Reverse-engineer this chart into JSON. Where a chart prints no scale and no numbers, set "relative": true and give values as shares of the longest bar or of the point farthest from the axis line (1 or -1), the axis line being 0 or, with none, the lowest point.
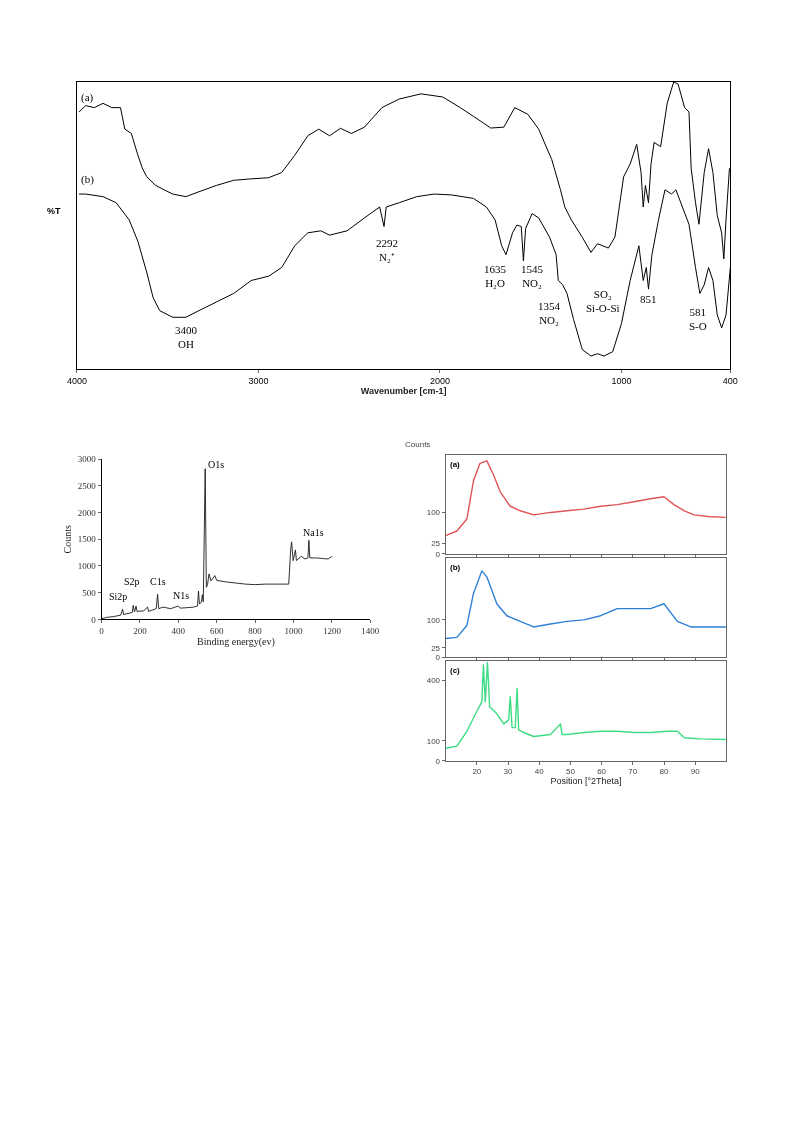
{
  "chart_data": [
    {
      "type": "line",
      "relative": true,
      "xlabel": "Wavenumber [cm-1]",
      "ylabel": "%T",
      "xlim": [
        4000,
        400
      ],
      "xticks": [
        4000,
        3000,
        2000,
        1000,
        400
      ],
      "series": [
        {
          "name": "(a)",
          "color": "#000000",
          "x": [
            3988,
            3952,
            3904,
            3856,
            3808,
            3760,
            3736,
            3700,
            3664,
            3640,
            3616,
            3568,
            3520,
            3472,
            3400,
            3328,
            3232,
            3136,
            3040,
            2944,
            2872,
            2800,
            2728,
            2668,
            2608,
            2548,
            2488,
            2416,
            2320,
            2224,
            2104,
            1984,
            1888,
            1816,
            1720,
            1648,
            1588,
            1516,
            1456,
            1384,
            1336,
            1312,
            1276,
            1216,
            1168,
            1132,
            1072,
            1036,
            988,
            952,
            916,
            892,
            880,
            868,
            851,
            837,
            820,
            784,
            748,
            712,
            688,
            652,
            628,
            616,
            592,
            573,
            544,
            520,
            496,
            472,
            448,
            436,
            424,
            405
          ],
          "values": [
            0.895,
            0.917,
            0.91,
            0.925,
            0.91,
            0.91,
            0.835,
            0.82,
            0.744,
            0.7,
            0.67,
            0.64,
            0.624,
            0.609,
            0.6,
            0.617,
            0.639,
            0.657,
            0.662,
            0.666,
            0.684,
            0.744,
            0.812,
            0.835,
            0.812,
            0.838,
            0.82,
            0.842,
            0.91,
            0.94,
            0.958,
            0.947,
            0.91,
            0.88,
            0.839,
            0.842,
            0.91,
            0.887,
            0.835,
            0.729,
            0.624,
            0.564,
            0.519,
            0.459,
            0.406,
            0.436,
            0.421,
            0.459,
            0.669,
            0.714,
            0.782,
            0.684,
            0.564,
            0.639,
            0.579,
            0.714,
            0.789,
            0.774,
            0.925,
            1.0,
            0.992,
            0.91,
            0.895,
            0.699,
            0.579,
            0.504,
            0.684,
            0.767,
            0.684,
            0.534,
            0.474,
            0.383,
            0.519,
            0.699
          ]
        },
        {
          "name": "(b)",
          "color": "#000000",
          "x": [
            3988,
            3952,
            3856,
            3784,
            3712,
            3664,
            3616,
            3580,
            3544,
            3472,
            3400,
            3328,
            3232,
            3136,
            3040,
            2944,
            2872,
            2800,
            2728,
            2656,
            2608,
            2512,
            2416,
            2332,
            2308,
            2296,
            2224,
            2128,
            2032,
            1936,
            1816,
            1744,
            1696,
            1660,
            1636,
            1600,
            1576,
            1552,
            1540,
            1528,
            1492,
            1456,
            1396,
            1360,
            1348,
            1324,
            1300,
            1264,
            1216,
            1168,
            1132,
            1096,
            1048,
            1000,
            952,
            904,
            880,
            863,
            851,
            832,
            796,
            760,
            724,
            700,
            664,
            628,
            592,
            568,
            544,
            520,
            496,
            472,
            448,
            424,
            400
          ],
          "values": [
            0.609,
            0.609,
            0.6,
            0.579,
            0.519,
            0.444,
            0.338,
            0.248,
            0.203,
            0.18,
            0.18,
            0.203,
            0.233,
            0.263,
            0.308,
            0.323,
            0.353,
            0.429,
            0.474,
            0.481,
            0.466,
            0.481,
            0.526,
            0.564,
            0.496,
            0.564,
            0.579,
            0.6,
            0.609,
            0.606,
            0.594,
            0.564,
            0.519,
            0.429,
            0.398,
            0.474,
            0.501,
            0.496,
            0.376,
            0.489,
            0.541,
            0.526,
            0.459,
            0.398,
            0.308,
            0.293,
            0.263,
            0.173,
            0.068,
            0.045,
            0.053,
            0.045,
            0.06,
            0.158,
            0.308,
            0.429,
            0.308,
            0.353,
            0.278,
            0.398,
            0.519,
            0.624,
            0.609,
            0.624,
            0.564,
            0.504,
            0.353,
            0.263,
            0.293,
            0.353,
            0.308,
            0.188,
            0.143,
            0.188,
            0.353
          ]
        }
      ],
      "annotations": [
        "3400\nOH",
        "2292\nN₂⁺",
        "1635\nH₂O",
        "1545\nNO₂",
        "1354\nNO₂",
        "SO₂\nSi-O-Si",
        "851",
        "581\nS-O"
      ]
    },
    {
      "type": "line",
      "xlabel": "Binding energy(ev)",
      "ylabel": "Counts",
      "xlim": [
        0,
        1400
      ],
      "xticks": [
        0,
        200,
        400,
        600,
        800,
        1000,
        1200,
        1400
      ],
      "ylim": [
        0,
        3000
      ],
      "yticks": [
        0,
        500,
        1000,
        1500,
        2000,
        2500,
        3000
      ],
      "series": [
        {
          "color": "#1a1a1a",
          "x": [
            0,
            30,
            60,
            100,
            110,
            115,
            160,
            165,
            172,
            180,
            185,
            220,
            240,
            245,
            285,
            292,
            298,
            320,
            360,
            400,
            410,
            450,
            480,
            500,
            505,
            510,
            520,
            525,
            530,
            540,
            546,
            552,
            560,
            570,
            590,
            600,
            650,
            700,
            750,
            800,
            850,
            900,
            950,
            975,
            985,
            990,
            998,
            1010,
            1015,
            1040,
            1060,
            1075,
            1080,
            1085,
            1120,
            1150,
            1180,
            1200
          ],
          "values": [
            10,
            40,
            50,
            80,
            190,
            90,
            130,
            260,
            140,
            250,
            150,
            160,
            230,
            150,
            200,
            470,
            200,
            230,
            200,
            250,
            210,
            220,
            230,
            250,
            530,
            290,
            320,
            460,
            330,
            2820,
            600,
            650,
            850,
            720,
            820,
            730,
            700,
            680,
            660,
            650,
            660,
            660,
            660,
            660,
            1300,
            1450,
            1100,
            1300,
            1100,
            1180,
            1130,
            1150,
            1480,
            1150,
            1150,
            1140,
            1130,
            1180
          ]
        }
      ],
      "annotations": [
        "Si2p",
        "S2p",
        "C1s",
        "N1s",
        "O1s",
        "Na1s"
      ]
    },
    {
      "type": "line",
      "ylabel": "Counts",
      "xlim": [
        10,
        100
      ],
      "xticks": [
        20,
        30,
        40,
        50,
        60,
        70,
        80,
        90
      ],
      "ylim": [
        0,
        240
      ],
      "yticks": [
        0,
        25,
        100
      ],
      "tick_labels": "y",
      "series": [
        {
          "name": "(a)",
          "color": "#e05555",
          "x": [
            10,
            13.6,
            16.8,
            18.9,
            21,
            23.2,
            25.4,
            27.5,
            30.7,
            33.9,
            38.2,
            43.6,
            48.9,
            54.3,
            59.7,
            65,
            70.4,
            75.7,
            80,
            83.2,
            86.5,
            89.7,
            94,
            99.8
          ],
          "values": [
            44,
            55,
            84,
            176,
            219,
            225,
            190,
            150,
            115,
            104,
            94,
            100,
            104,
            108,
            115,
            119,
            126,
            133,
            138,
            119,
            104,
            94,
            90,
            88
          ]
        }
      ]
    },
    {
      "type": "line",
      "xlim": [
        10,
        100
      ],
      "xticks": [
        20,
        30,
        40,
        50,
        60,
        70,
        80,
        90
      ],
      "ylim": [
        0,
        265
      ],
      "yticks": [
        0,
        25,
        100
      ],
      "tick_labels": "y",
      "series": [
        {
          "name": "(b)",
          "color": "#2f80d8",
          "x": [
            10,
            13.6,
            16.8,
            18.9,
            21.6,
            23.2,
            26.4,
            29.6,
            33.9,
            38.2,
            43.6,
            48.9,
            54.3,
            59.7,
            65,
            70.4,
            75.7,
            80,
            84.3,
            88.6,
            94,
            99.8
          ],
          "values": [
            50,
            53,
            85,
            170,
            231,
            215,
            143,
            111,
            96,
            81,
            89,
            96,
            100,
            111,
            130,
            130,
            130,
            143,
            96,
            81,
            81,
            81
          ]
        }
      ]
    },
    {
      "type": "line",
      "xlabel": "Position [°2Theta]",
      "xlim": [
        10,
        100
      ],
      "xticks": [
        20,
        30,
        40,
        50,
        60,
        70,
        80,
        90
      ],
      "ylim": [
        0,
        500
      ],
      "yticks": [
        0,
        100,
        400
      ],
      "series": [
        {
          "name": "(c)",
          "color": "#3ddc84",
          "x": [
            10,
            13.6,
            16.8,
            20,
            21.6,
            22.1,
            22.7,
            23.4,
            24.1,
            26.4,
            28.6,
            30.2,
            30.7,
            31.3,
            32.3,
            32.9,
            33.4,
            35,
            38.2,
            43.6,
            46.8,
            47.3,
            48.9,
            54.3,
            59.7,
            65,
            70.4,
            75.7,
            81.1,
            84.3,
            86.5,
            91.8,
            99.8
          ],
          "values": [
            62,
            73,
            147,
            247,
            294,
            478,
            294,
            490,
            270,
            234,
            184,
            204,
            319,
            165,
            165,
            361,
            154,
            141,
            121,
            131,
            184,
            131,
            131,
            141,
            147,
            147,
            141,
            141,
            147,
            147,
            115,
            109,
            106
          ]
        }
      ]
    }
  ]
}
